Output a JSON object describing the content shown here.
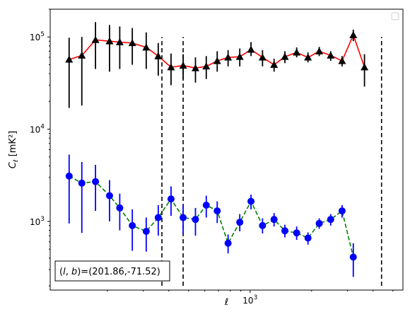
{
  "chart_data": {
    "type": "line",
    "title": "",
    "xlabel": "ℓ",
    "ylabel": "C_ℓ [mK²]",
    "x_scale": "log",
    "y_scale": "log",
    "xlim": [
      105,
      5600
    ],
    "ylim": [
      180,
      200000
    ],
    "x_tick_labels": [
      {
        "value": 1000,
        "base": "10",
        "exp": "3"
      }
    ],
    "y_tick_labels": [
      {
        "value": 1000,
        "base": "10",
        "exp": "3"
      },
      {
        "value": 10000,
        "base": "10",
        "exp": "4"
      },
      {
        "value": 100000,
        "base": "10",
        "exp": "5"
      }
    ],
    "grid": false,
    "legend": {
      "location": "top-right",
      "entries": []
    },
    "vertical_lines": [
      370,
      470,
      4400
    ],
    "vertical_line_style": {
      "color": "#000000",
      "dash": "dashed",
      "ymin": 200,
      "ymax": 100000
    },
    "annotation": {
      "text": "(l, b)=(201.86,-71.52)",
      "prefix": "(",
      "var1": "l",
      "sep": ", ",
      "var2": "b",
      "suffix": ")=(201.86,-71.52)",
      "location": "bottom-left"
    },
    "series": [
      {
        "marker": "triangle",
        "line_color": "#ff0000",
        "marker_color": "#000000",
        "line_style": "solid",
        "x": [
          130,
          150,
          175,
          205,
          230,
          265,
          310,
          355,
          410,
          470,
          540,
          610,
          690,
          780,
          890,
          1010,
          1150,
          1310,
          1480,
          1690,
          1920,
          2180,
          2480,
          2820,
          3200,
          3630,
          4130,
          4690,
          5330
        ],
        "y": [
          57000,
          63000,
          93000,
          90000,
          88000,
          86000,
          77000,
          62000,
          47000,
          49000,
          46000,
          48000,
          55000,
          60000,
          61000,
          73000,
          60000,
          50000,
          61000,
          68000,
          60000,
          70000,
          63000,
          55000,
          105000,
          47000,
          0,
          0,
          0
        ],
        "y_low": [
          17000,
          18000,
          45000,
          42000,
          45000,
          50000,
          45000,
          38000,
          30000,
          35000,
          32000,
          35000,
          42000,
          48000,
          48000,
          62000,
          48000,
          42000,
          52000,
          60000,
          53000,
          62000,
          55000,
          48000,
          90000,
          29000,
          0,
          0,
          0
        ],
        "y_high": [
          98000,
          100000,
          145000,
          135000,
          130000,
          125000,
          112000,
          86000,
          66000,
          65000,
          60000,
          62000,
          70000,
          72000,
          75000,
          88000,
          72000,
          58000,
          70000,
          77000,
          68000,
          78000,
          70000,
          62000,
          120000,
          65000,
          0,
          0,
          0
        ]
      },
      {
        "marker": "circle",
        "line_color": "#008000",
        "marker_color": "#0000ff",
        "line_style": "dashed",
        "x": [
          130,
          150,
          175,
          205,
          230,
          265,
          310,
          355,
          410,
          470,
          540,
          610,
          690,
          780,
          890,
          1010,
          1150,
          1310,
          1480,
          1690,
          1920,
          2180,
          2480,
          2820,
          3200,
          3630,
          4130,
          4690,
          5330
        ],
        "y": [
          3100,
          2600,
          2700,
          1900,
          1400,
          900,
          780,
          1100,
          1750,
          1100,
          1050,
          1500,
          1300,
          580,
          980,
          1650,
          900,
          1050,
          790,
          750,
          660,
          950,
          1050,
          1300,
          410,
          0,
          0,
          0,
          0
        ],
        "y_low": [
          950,
          750,
          1300,
          1000,
          800,
          480,
          470,
          700,
          1150,
          730,
          700,
          1100,
          960,
          450,
          780,
          1350,
          740,
          880,
          670,
          630,
          560,
          830,
          900,
          1100,
          250,
          0,
          0,
          0,
          0
        ],
        "y_high": [
          5300,
          4400,
          4100,
          2800,
          2000,
          1350,
          1100,
          1500,
          2400,
          1500,
          1400,
          1900,
          1650,
          720,
          1200,
          1950,
          1080,
          1230,
          920,
          880,
          760,
          1080,
          1200,
          1500,
          580,
          0,
          0,
          0,
          0
        ]
      }
    ]
  }
}
